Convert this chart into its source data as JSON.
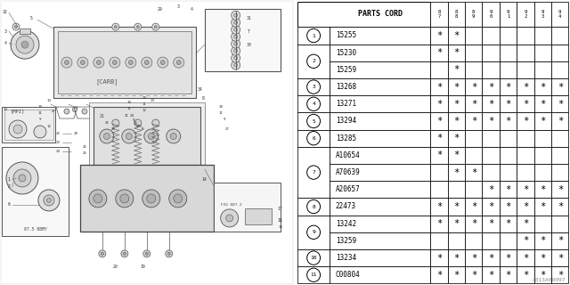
{
  "watermark": "A013A00097",
  "table": {
    "header_col": "PARTS CORD",
    "year_cols": [
      "8\n7",
      "8\n8",
      "8\n9",
      "9\n0",
      "9\n1",
      "9\n2",
      "9\n3",
      "9\n4"
    ],
    "groups": [
      {
        "num": "1",
        "parts": [
          "15255"
        ],
        "marks": [
          [
            1,
            1,
            0,
            0,
            0,
            0,
            0,
            0
          ]
        ]
      },
      {
        "num": "2",
        "parts": [
          "15230",
          "15259"
        ],
        "marks": [
          [
            1,
            1,
            0,
            0,
            0,
            0,
            0,
            0
          ],
          [
            0,
            1,
            0,
            0,
            0,
            0,
            0,
            0
          ]
        ]
      },
      {
        "num": "3",
        "parts": [
          "13268"
        ],
        "marks": [
          [
            1,
            1,
            1,
            1,
            1,
            1,
            1,
            1
          ]
        ]
      },
      {
        "num": "4",
        "parts": [
          "13271"
        ],
        "marks": [
          [
            1,
            1,
            1,
            1,
            1,
            1,
            1,
            1
          ]
        ]
      },
      {
        "num": "5",
        "parts": [
          "13294"
        ],
        "marks": [
          [
            1,
            1,
            1,
            1,
            1,
            1,
            1,
            1
          ]
        ]
      },
      {
        "num": "6",
        "parts": [
          "13285"
        ],
        "marks": [
          [
            1,
            1,
            0,
            0,
            0,
            0,
            0,
            0
          ]
        ]
      },
      {
        "num": "7",
        "parts": [
          "A10654",
          "A70639",
          "A20657"
        ],
        "marks": [
          [
            1,
            1,
            0,
            0,
            0,
            0,
            0,
            0
          ],
          [
            0,
            1,
            1,
            0,
            0,
            0,
            0,
            0
          ],
          [
            0,
            0,
            0,
            1,
            1,
            1,
            1,
            1
          ]
        ]
      },
      {
        "num": "8",
        "parts": [
          "22473"
        ],
        "marks": [
          [
            1,
            1,
            1,
            1,
            1,
            1,
            1,
            1
          ]
        ]
      },
      {
        "num": "9",
        "parts": [
          "13242",
          "13259"
        ],
        "marks": [
          [
            1,
            1,
            1,
            1,
            1,
            1,
            0,
            0
          ],
          [
            0,
            0,
            0,
            0,
            0,
            1,
            1,
            1
          ]
        ]
      },
      {
        "num": "10",
        "parts": [
          "13234"
        ],
        "marks": [
          [
            1,
            1,
            1,
            1,
            1,
            1,
            1,
            1
          ]
        ]
      },
      {
        "num": "11",
        "parts": [
          "C00804"
        ],
        "marks": [
          [
            1,
            1,
            1,
            1,
            1,
            1,
            1,
            1
          ]
        ]
      }
    ]
  },
  "diag_bg": "#ffffff",
  "line_col": "#444444",
  "lw_main": 0.7,
  "lw_thin": 0.4
}
